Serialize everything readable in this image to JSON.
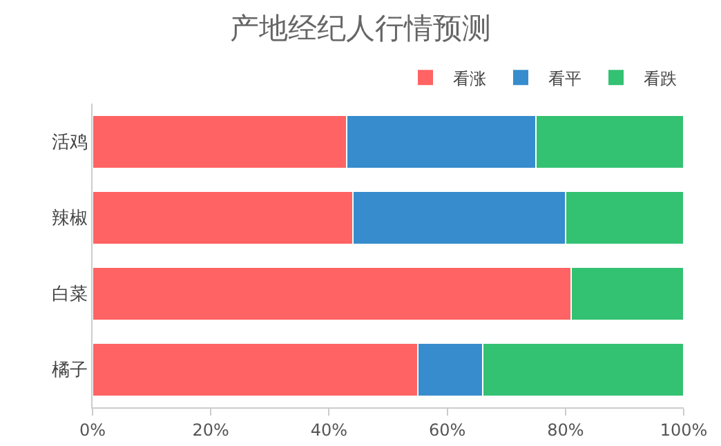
{
  "chart_data": {
    "type": "bar",
    "title": "产地经纪人行情预测",
    "orientation": "horizontal",
    "stacked": true,
    "categories": [
      "活鸡",
      "辣椒",
      "白菜",
      "橘子"
    ],
    "series": [
      {
        "name": "看涨",
        "color": "#ff6363",
        "values": [
          43,
          44,
          81,
          55
        ]
      },
      {
        "name": "看平",
        "color": "#368ccc",
        "values": [
          32,
          36,
          0,
          11
        ]
      },
      {
        "name": "看跌",
        "color": "#33c172",
        "values": [
          25,
          20,
          19,
          34
        ]
      }
    ],
    "xlim": [
      0,
      100
    ],
    "xticks": [
      {
        "value": 0,
        "label": "0%"
      },
      {
        "value": 20,
        "label": "20%"
      },
      {
        "value": 40,
        "label": "40%"
      },
      {
        "value": 60,
        "label": "60%"
      },
      {
        "value": 80,
        "label": "80%"
      },
      {
        "value": 100,
        "label": "100%"
      }
    ],
    "grid": false,
    "legend": "top right"
  }
}
